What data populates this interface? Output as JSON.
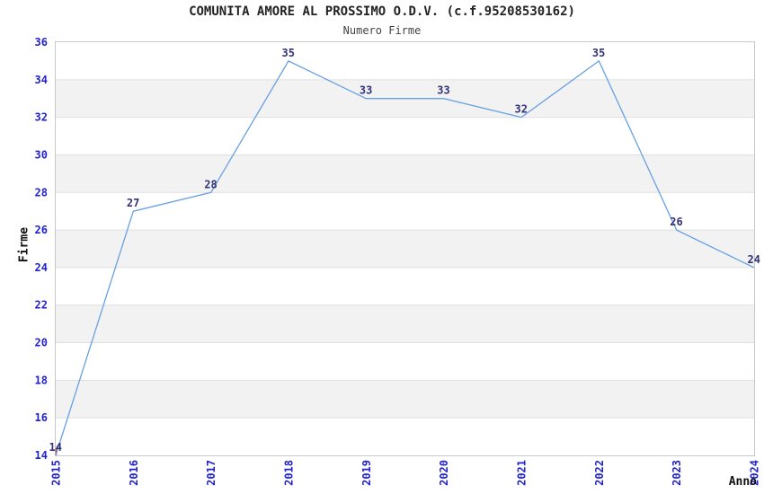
{
  "page": {
    "background": "#FFFFFF"
  },
  "chart_data": {
    "type": "line",
    "title": "COMUNITA AMORE AL PROSSIMO O.D.V. (c.f.95208530162)",
    "subtitle": "Numero Firme",
    "xlabel": "Anno",
    "ylabel": "Firme",
    "categories": [
      "2015",
      "2016",
      "2017",
      "2018",
      "2019",
      "2020",
      "2021",
      "2022",
      "2023",
      "2024"
    ],
    "series": [
      {
        "name": "Numero Firme",
        "values": [
          14,
          27,
          28,
          35,
          33,
          33,
          32,
          35,
          26,
          24
        ]
      }
    ],
    "point_labels": [
      "14",
      "27",
      "28",
      "35",
      "33",
      "33",
      "32",
      "35",
      "26",
      "24"
    ],
    "ylim": [
      14,
      36
    ],
    "ytick_step": 2,
    "legend": "none",
    "grid": "alternating horizontal bands with light gridlines at every y tick",
    "colors": {
      "line": "#68A1E0",
      "tick_label": "#2222CC",
      "value_label": "#333377",
      "band": "#F2F2F2",
      "gridline": "#DFDFDF",
      "plot_border": "#C8C8C8",
      "title": "#222222",
      "subtitle": "#444444",
      "axis_title": "#111111",
      "start_marker": "#CC3322"
    }
  }
}
